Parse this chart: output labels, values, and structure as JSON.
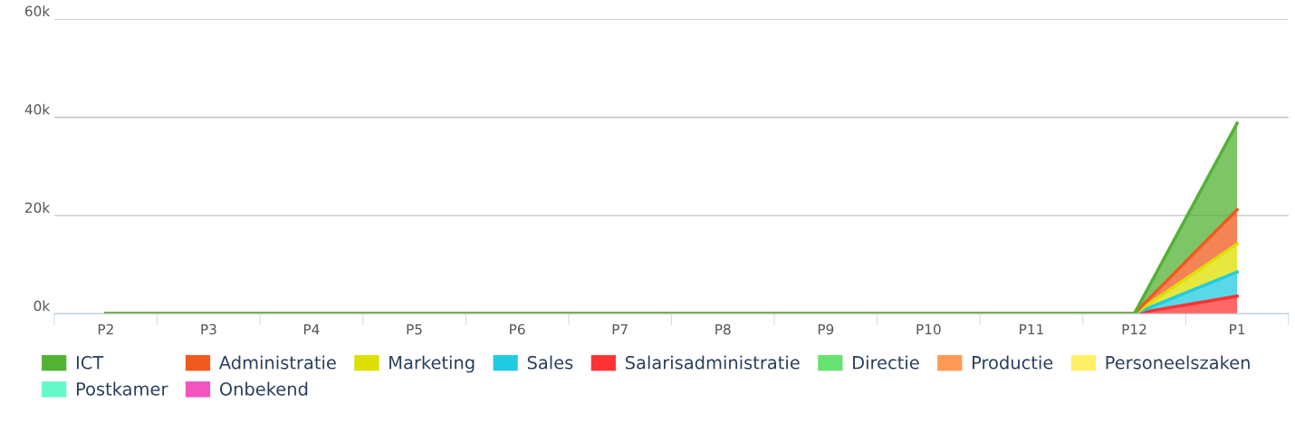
{
  "chart_data": {
    "type": "area",
    "stacked": true,
    "categories": [
      "P2",
      "P3",
      "P4",
      "P5",
      "P6",
      "P7",
      "P8",
      "P9",
      "P10",
      "P11",
      "P12",
      "P1"
    ],
    "series": [
      {
        "name": "Onbekend",
        "color": "#f055c0",
        "values": [
          null,
          null,
          null,
          null,
          null,
          null,
          null,
          null,
          null,
          null,
          null,
          null
        ]
      },
      {
        "name": "Postkamer",
        "color": "#66f8c8",
        "values": [
          null,
          null,
          null,
          null,
          null,
          null,
          null,
          null,
          null,
          null,
          null,
          null
        ]
      },
      {
        "name": "Personeelszaken",
        "color": "#fff066",
        "values": [
          null,
          null,
          null,
          null,
          null,
          null,
          null,
          null,
          null,
          null,
          null,
          null
        ]
      },
      {
        "name": "Productie",
        "color": "#ff9955",
        "values": [
          null,
          null,
          null,
          null,
          null,
          null,
          null,
          null,
          null,
          null,
          null,
          null
        ]
      },
      {
        "name": "Directie",
        "color": "#66e270",
        "values": [
          null,
          null,
          null,
          null,
          null,
          null,
          null,
          null,
          null,
          null,
          null,
          null
        ]
      },
      {
        "name": "Salarisadministratie",
        "color": "#ff3333",
        "values": [
          0,
          0,
          0,
          0,
          0,
          0,
          0,
          0,
          0,
          0,
          0,
          3600
        ]
      },
      {
        "name": "Sales",
        "color": "#22cce0",
        "values": [
          0,
          0,
          0,
          0,
          0,
          0,
          0,
          0,
          0,
          0,
          0,
          4900
        ]
      },
      {
        "name": "Marketing",
        "color": "#dde000",
        "values": [
          0,
          0,
          0,
          0,
          0,
          0,
          0,
          0,
          0,
          0,
          0,
          5700
        ]
      },
      {
        "name": "Administratie",
        "color": "#f05a1e",
        "values": [
          0,
          0,
          0,
          0,
          0,
          0,
          0,
          0,
          0,
          0,
          0,
          7000
        ]
      },
      {
        "name": "ICT",
        "color": "#52b234",
        "values": [
          0,
          0,
          0,
          0,
          0,
          0,
          0,
          0,
          0,
          0,
          0,
          17600
        ]
      }
    ],
    "ylim": [
      0,
      60000
    ],
    "yticks": [
      {
        "value": 0,
        "label": "0k"
      },
      {
        "value": 20000,
        "label": "20k"
      },
      {
        "value": 40000,
        "label": "40k"
      },
      {
        "value": 60000,
        "label": "60k"
      }
    ],
    "grid": "y",
    "legend": "bottom"
  }
}
